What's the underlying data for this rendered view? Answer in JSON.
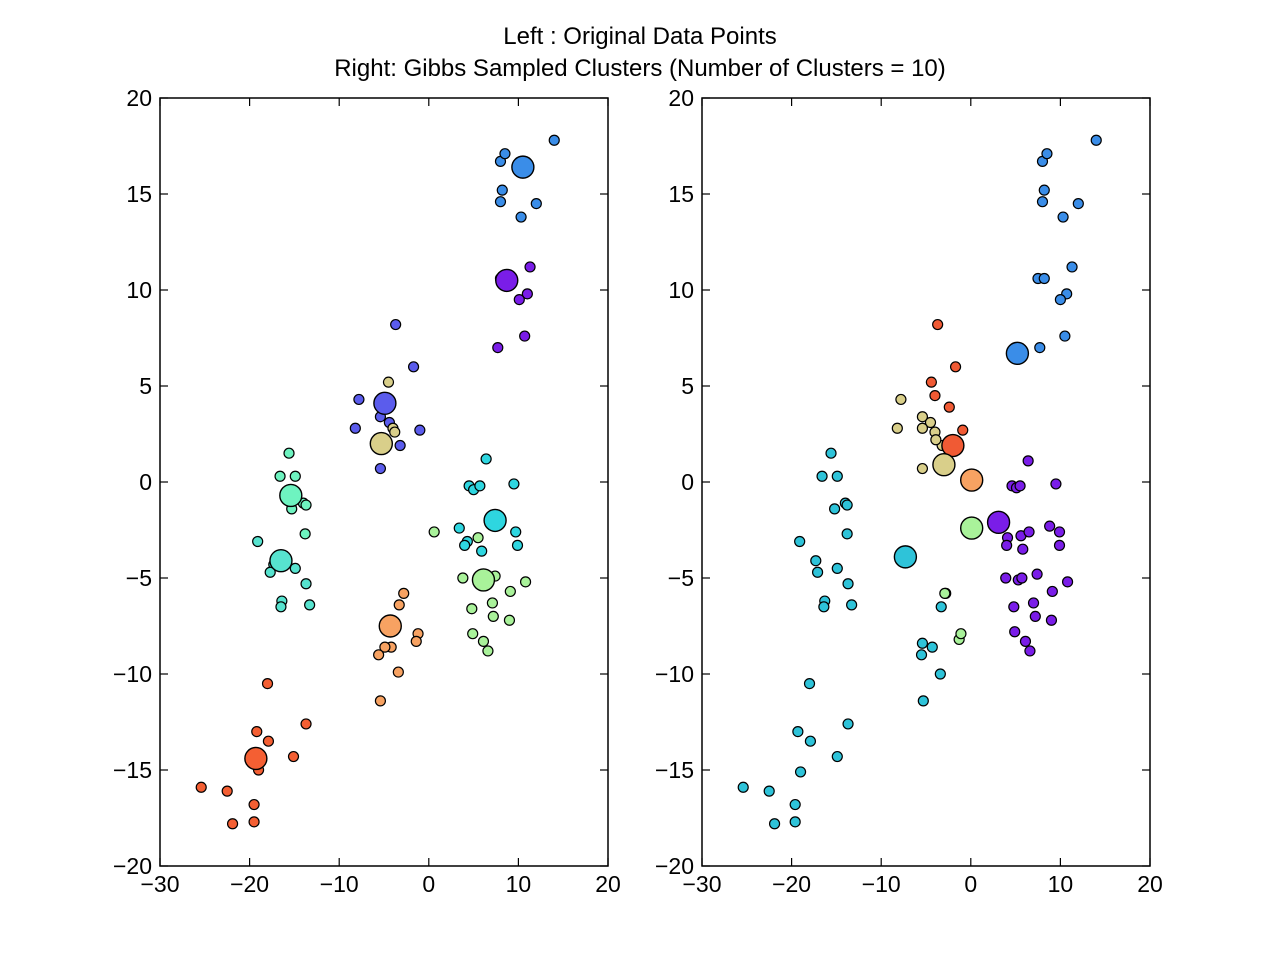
{
  "title_lines": [
    "Left : Original Data Points",
    "Right: Gibbs Sampled Clusters (Number of Clusters = 10)"
  ],
  "chart_data": [
    {
      "type": "scatter",
      "title": "Left : Original Data Points",
      "xlim": [
        -30,
        20
      ],
      "ylim": [
        -20,
        20
      ],
      "xticks": [
        "−30",
        "−20",
        "−10",
        "0",
        "10",
        "20"
      ],
      "yticks": [
        "20",
        "15",
        "10",
        "5",
        "0",
        "−5",
        "−10",
        "−15",
        "−20"
      ],
      "xtick_values": [
        -30,
        -20,
        -10,
        0,
        10,
        20
      ],
      "ytick_values": [
        20,
        15,
        10,
        5,
        0,
        -5,
        -10,
        -15,
        -20
      ],
      "grid": false,
      "clusters": [
        {
          "color": "#3a8de8",
          "center": [
            10.5,
            16.4
          ],
          "points": [
            [
              8.0,
              16.7
            ],
            [
              8.5,
              17.1
            ],
            [
              14.0,
              17.8
            ],
            [
              8.2,
              15.2
            ],
            [
              8.0,
              14.6
            ],
            [
              12.0,
              14.5
            ],
            [
              10.3,
              13.8
            ]
          ]
        },
        {
          "color": "#7a1de8",
          "center": [
            8.7,
            10.5
          ],
          "points": [
            [
              8.0,
              10.6
            ],
            [
              11.3,
              11.2
            ],
            [
              11.0,
              9.8
            ],
            [
              10.1,
              9.5
            ],
            [
              10.7,
              7.6
            ],
            [
              7.7,
              7.0
            ]
          ]
        },
        {
          "color": "#5b5cec",
          "center": [
            -4.9,
            4.1
          ],
          "points": [
            [
              -3.7,
              8.2
            ],
            [
              -1.7,
              6.0
            ],
            [
              -7.8,
              4.3
            ],
            [
              -5.4,
              3.4
            ],
            [
              -4.4,
              3.1
            ],
            [
              -8.2,
              2.8
            ],
            [
              -1.0,
              2.7
            ],
            [
              -3.2,
              1.9
            ],
            [
              -5.4,
              0.7
            ]
          ]
        },
        {
          "color": "#d9cf8a",
          "center": [
            -5.3,
            2.0
          ],
          "points": [
            [
              -4.5,
              5.2
            ],
            [
              -4.0,
              2.8
            ],
            [
              -3.8,
              2.6
            ]
          ]
        },
        {
          "color": "#6ef3c0",
          "center": [
            -15.4,
            -0.7
          ],
          "points": [
            [
              -15.6,
              1.5
            ],
            [
              -16.6,
              0.3
            ],
            [
              -14.9,
              0.3
            ],
            [
              -14.0,
              -1.1
            ],
            [
              -13.7,
              -1.2
            ],
            [
              -15.3,
              -1.4
            ],
            [
              -13.8,
              -2.7
            ]
          ]
        },
        {
          "color": "#57e3cf",
          "center": [
            -16.5,
            -4.1
          ],
          "points": [
            [
              -19.1,
              -3.1
            ],
            [
              -17.3,
              -4.3
            ],
            [
              -17.7,
              -4.7
            ],
            [
              -14.9,
              -4.5
            ],
            [
              -13.7,
              -5.3
            ],
            [
              -16.4,
              -6.2
            ],
            [
              -16.5,
              -6.5
            ],
            [
              -13.3,
              -6.4
            ]
          ]
        },
        {
          "color": "#2ed6e0",
          "center": [
            7.4,
            -2.0
          ],
          "points": [
            [
              6.4,
              1.2
            ],
            [
              4.5,
              -0.2
            ],
            [
              5.0,
              -0.4
            ],
            [
              5.7,
              -0.2
            ],
            [
              9.5,
              -0.1
            ],
            [
              3.4,
              -2.4
            ],
            [
              4.3,
              -3.1
            ],
            [
              4.0,
              -3.3
            ],
            [
              5.9,
              -3.6
            ],
            [
              9.7,
              -2.6
            ],
            [
              9.9,
              -3.3
            ]
          ]
        },
        {
          "color": "#a9f29a",
          "center": [
            6.1,
            -5.1
          ],
          "points": [
            [
              0.6,
              -2.6
            ],
            [
              5.5,
              -2.9
            ],
            [
              3.8,
              -5.0
            ],
            [
              7.4,
              -4.9
            ],
            [
              10.8,
              -5.2
            ],
            [
              4.8,
              -6.6
            ],
            [
              7.1,
              -6.3
            ],
            [
              9.1,
              -5.7
            ],
            [
              7.2,
              -7.0
            ],
            [
              9.0,
              -7.2
            ],
            [
              4.9,
              -7.9
            ],
            [
              6.1,
              -8.3
            ],
            [
              6.6,
              -8.8
            ]
          ]
        },
        {
          "color": "#f7a262",
          "center": [
            -4.3,
            -7.5
          ],
          "points": [
            [
              -2.8,
              -5.8
            ],
            [
              -3.3,
              -6.4
            ],
            [
              -1.2,
              -7.9
            ],
            [
              -1.4,
              -8.3
            ],
            [
              -4.2,
              -8.6
            ],
            [
              -4.9,
              -8.6
            ],
            [
              -5.6,
              -9.0
            ],
            [
              -3.4,
              -9.9
            ],
            [
              -5.4,
              -11.4
            ]
          ]
        },
        {
          "color": "#f45f33",
          "center": [
            -19.3,
            -14.4
          ],
          "points": [
            [
              -18.0,
              -10.5
            ],
            [
              -13.7,
              -12.6
            ],
            [
              -19.2,
              -13.0
            ],
            [
              -17.9,
              -13.5
            ],
            [
              -15.1,
              -14.3
            ],
            [
              -19.0,
              -15.0
            ],
            [
              -25.4,
              -15.9
            ],
            [
              -22.5,
              -16.1
            ],
            [
              -19.5,
              -16.8
            ],
            [
              -21.9,
              -17.8
            ],
            [
              -19.5,
              -17.7
            ]
          ]
        }
      ]
    },
    {
      "type": "scatter",
      "title": "Right: Gibbs Sampled Clusters (Number of Clusters = 10)",
      "xlim": [
        -30,
        20
      ],
      "ylim": [
        -20,
        20
      ],
      "xticks": [
        "−30",
        "−20",
        "−10",
        "0",
        "10",
        "20"
      ],
      "yticks": [
        "20",
        "15",
        "10",
        "5",
        "0",
        "−5",
        "−10",
        "−15",
        "−20"
      ],
      "xtick_values": [
        -30,
        -20,
        -10,
        0,
        10,
        20
      ],
      "ytick_values": [
        20,
        15,
        10,
        5,
        0,
        -5,
        -10,
        -15,
        -20
      ],
      "grid": false,
      "clusters": [
        {
          "color": "#3a8de8",
          "center": [
            5.2,
            6.7
          ],
          "points": [
            [
              8.0,
              16.7
            ],
            [
              8.5,
              17.1
            ],
            [
              14.0,
              17.8
            ],
            [
              8.2,
              15.2
            ],
            [
              8.0,
              14.6
            ],
            [
              12.0,
              14.5
            ],
            [
              10.3,
              13.8
            ],
            [
              7.5,
              10.6
            ],
            [
              8.2,
              10.6
            ],
            [
              11.3,
              11.2
            ],
            [
              10.7,
              9.8
            ],
            [
              10.0,
              9.5
            ],
            [
              10.5,
              7.6
            ],
            [
              7.7,
              7.0
            ]
          ]
        },
        {
          "color": "#2ec3d9",
          "center": [
            -7.3,
            -3.9
          ],
          "points": [
            [
              -15.6,
              1.5
            ],
            [
              -16.6,
              0.3
            ],
            [
              -14.9,
              0.3
            ],
            [
              -14.0,
              -1.1
            ],
            [
              -13.8,
              -1.2
            ],
            [
              -15.2,
              -1.4
            ],
            [
              -13.8,
              -2.7
            ],
            [
              -19.1,
              -3.1
            ],
            [
              -17.3,
              -4.1
            ],
            [
              -17.1,
              -4.7
            ],
            [
              -14.9,
              -4.5
            ],
            [
              -13.7,
              -5.3
            ],
            [
              -16.3,
              -6.2
            ],
            [
              -16.4,
              -6.5
            ],
            [
              -13.3,
              -6.4
            ],
            [
              -2.8,
              -5.8
            ],
            [
              -3.3,
              -6.5
            ],
            [
              -5.4,
              -8.4
            ],
            [
              -4.3,
              -8.6
            ],
            [
              -5.5,
              -9.0
            ],
            [
              -3.4,
              -10.0
            ],
            [
              -5.3,
              -11.4
            ],
            [
              -18.0,
              -10.5
            ],
            [
              -13.7,
              -12.6
            ],
            [
              -19.3,
              -13.0
            ],
            [
              -17.9,
              -13.5
            ],
            [
              -14.9,
              -14.3
            ],
            [
              -19.0,
              -15.1
            ],
            [
              -25.4,
              -15.9
            ],
            [
              -22.5,
              -16.1
            ],
            [
              -19.6,
              -16.8
            ],
            [
              -21.9,
              -17.8
            ],
            [
              -19.6,
              -17.7
            ]
          ]
        },
        {
          "color": "#7a1de8",
          "center": [
            3.1,
            -2.1
          ],
          "points": [
            [
              6.4,
              1.1
            ],
            [
              4.6,
              -0.2
            ],
            [
              5.1,
              -0.3
            ],
            [
              5.5,
              -0.2
            ],
            [
              9.5,
              -0.1
            ],
            [
              4.1,
              -2.9
            ],
            [
              4.0,
              -3.3
            ],
            [
              5.6,
              -2.8
            ],
            [
              6.5,
              -2.6
            ],
            [
              5.8,
              -3.5
            ],
            [
              9.9,
              -2.6
            ],
            [
              9.9,
              -3.3
            ],
            [
              3.9,
              -5.0
            ],
            [
              5.3,
              -5.1
            ],
            [
              5.7,
              -5.0
            ],
            [
              7.4,
              -4.8
            ],
            [
              10.8,
              -5.2
            ],
            [
              4.8,
              -6.5
            ],
            [
              7.0,
              -6.3
            ],
            [
              9.1,
              -5.7
            ],
            [
              7.2,
              -7.0
            ],
            [
              9.0,
              -7.2
            ],
            [
              4.9,
              -7.8
            ],
            [
              6.1,
              -8.3
            ],
            [
              6.6,
              -8.8
            ],
            [
              8.8,
              -2.3
            ]
          ]
        },
        {
          "color": "#f05a34",
          "center": [
            -2.0,
            1.9
          ],
          "points": [
            [
              -3.7,
              8.2
            ],
            [
              -1.7,
              6.0
            ],
            [
              -4.4,
              5.2
            ],
            [
              -4.0,
              4.5
            ],
            [
              -2.4,
              3.9
            ],
            [
              -0.9,
              2.7
            ]
          ]
        },
        {
          "color": "#d9cf8a",
          "center": [
            -3.0,
            0.9
          ],
          "points": [
            [
              -7.8,
              4.3
            ],
            [
              -5.4,
              3.4
            ],
            [
              -4.5,
              3.1
            ],
            [
              -5.4,
              2.8
            ],
            [
              -4.0,
              2.6
            ],
            [
              -8.2,
              2.8
            ],
            [
              -3.2,
              1.9
            ],
            [
              -3.9,
              2.2
            ],
            [
              -5.4,
              0.7
            ]
          ]
        },
        {
          "color": "#f7a262",
          "center": [
            0.1,
            0.1
          ],
          "points": []
        },
        {
          "color": "#a9f29a",
          "center": [
            0.1,
            -2.4
          ],
          "points": [
            [
              -2.9,
              -5.8
            ],
            [
              -1.3,
              -8.2
            ],
            [
              -1.1,
              -7.9
            ]
          ]
        }
      ]
    }
  ]
}
